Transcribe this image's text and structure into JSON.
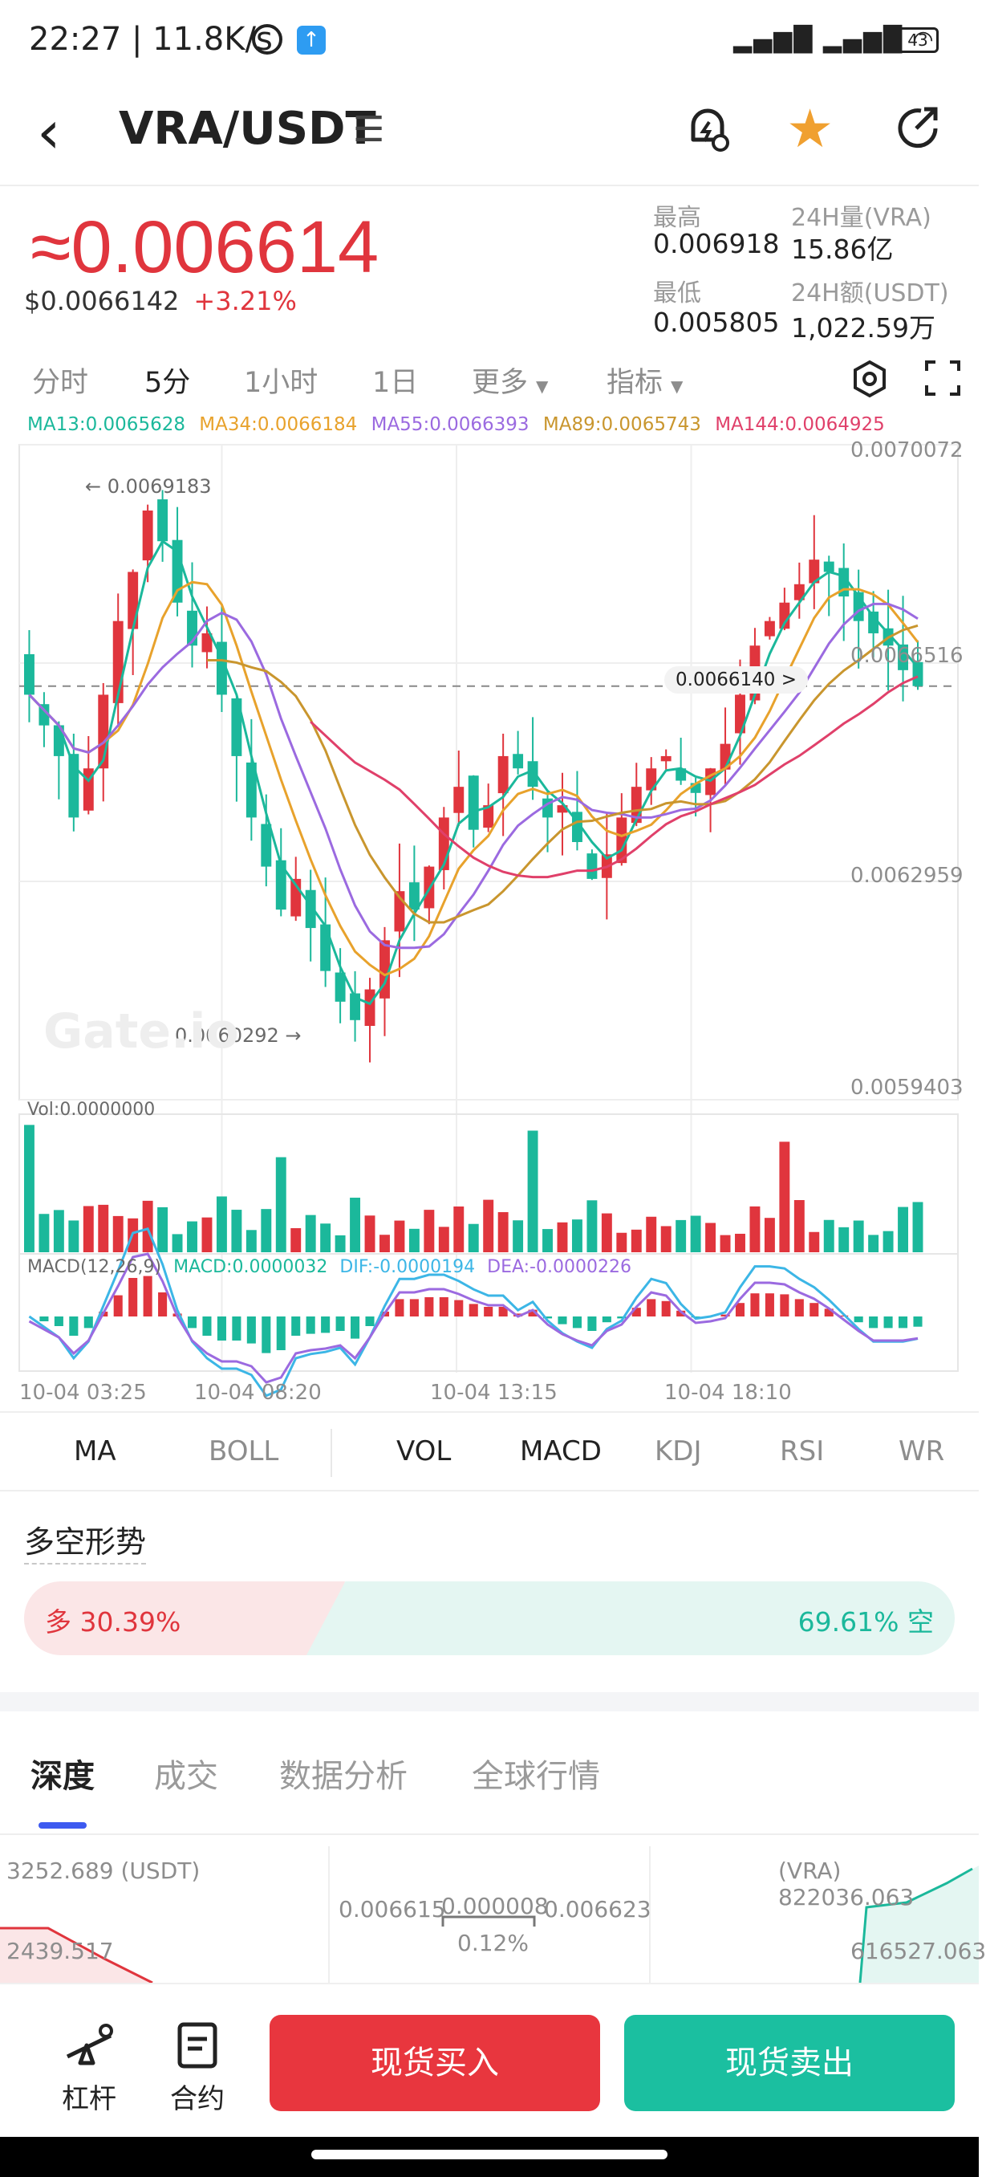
{
  "status_bar": {
    "time": "22:27 | 11.8K/s",
    "battery": "43"
  },
  "header": {
    "pair": "VRA/USDT",
    "favorited": true
  },
  "ticker": {
    "price": "≈0.006614",
    "usd_price": "$0.0066142",
    "change": "+3.21%",
    "high_label": "最高",
    "high_value": "0.006918",
    "vol_label": "24H量(VRA)",
    "vol_value": "15.86亿",
    "low_label": "最低",
    "low_value": "0.005805",
    "amount_label": "24H额(USDT)",
    "amount_value": "1,022.59万"
  },
  "periods": {
    "items": [
      "分时",
      "5分",
      "1小时",
      "1日",
      "更多",
      "指标"
    ],
    "active": "5分"
  },
  "ma_legend": [
    {
      "text": "MA13:0.0065628",
      "color": "#1bb89b"
    },
    {
      "text": "MA34:0.0066184",
      "color": "#e8a22c"
    },
    {
      "text": "MA55:0.0066393",
      "color": "#9b6ae0"
    },
    {
      "text": "MA89:0.0065743",
      "color": "#c9962e"
    },
    {
      "text": "MA144:0.0064925",
      "color": "#e0406a"
    }
  ],
  "chart": {
    "y_labels": [
      "0.0070072",
      "0.0066516",
      "0.0062959",
      "0.0059403"
    ],
    "high_marker": "← 0.0069183",
    "low_marker": "0.0060292 →",
    "current_price_tag": "0.0066140",
    "watermark": "Gate.io",
    "vol_legend": "Vol:0.0000000",
    "macd_legend": {
      "label": "MACD(12,26,9)",
      "macd": "MACD:0.0000032",
      "dif": "DIF:-0.0000194",
      "dea": "DEA:-0.0000226"
    },
    "x_labels": [
      "10-04 03:25",
      "10-04 08:20",
      "10-04 13:15",
      "10-04 18:10"
    ]
  },
  "chart_data": {
    "type": "candlestick",
    "ylim": [
      0.0059403,
      0.0070072
    ],
    "y_ticks": [
      0.0070072,
      0.0066516,
      0.0062959,
      0.0059403
    ],
    "x_ticks": [
      "10-04 03:25",
      "10-04 08:20",
      "10-04 13:15",
      "10-04 18:10"
    ],
    "close_series": [
      0.0066,
      0.00655,
      0.0065,
      0.0064,
      0.00648,
      0.0066,
      0.00672,
      0.0068,
      0.0069,
      0.00685,
      0.00675,
      0.00668,
      0.0067,
      0.0066,
      0.0065,
      0.0064,
      0.00632,
      0.00625,
      0.0063,
      0.00622,
      0.00615,
      0.0061,
      0.00607,
      0.00612,
      0.0062,
      0.00628,
      0.00625,
      0.00632,
      0.0064,
      0.00645,
      0.00638,
      0.00642,
      0.0065,
      0.00648,
      0.00645,
      0.0064,
      0.00642,
      0.00636,
      0.0063,
      0.00634,
      0.0064,
      0.00645,
      0.00648,
      0.0065,
      0.00646,
      0.00644,
      0.00648,
      0.00652,
      0.0066,
      0.00668,
      0.00672,
      0.00675,
      0.00678,
      0.00682,
      0.0068,
      0.00676,
      0.00672,
      0.0067,
      0.00668,
      0.00664,
      0.006614
    ],
    "high_marker_value": 0.0069183,
    "low_marker_value": 0.0060292,
    "current_price": 0.006614,
    "grid": true
  },
  "indicator_tabs": {
    "main": [
      "MA",
      "BOLL"
    ],
    "sub": [
      "VOL",
      "MACD",
      "KDJ",
      "RSI",
      "WR"
    ],
    "active_main": "MA",
    "active_sub": [
      "VOL",
      "MACD"
    ]
  },
  "sentiment": {
    "title": "多空形势",
    "long_text": "多 30.39%",
    "short_text": "69.61% 空",
    "long_pct": 30.39
  },
  "bottom_tabs": {
    "items": [
      "深度",
      "成交",
      "数据分析",
      "全球行情"
    ],
    "active": "深度"
  },
  "depth": {
    "left_total": "3252.689 (USDT)",
    "left_value": "2439.517",
    "bid": "0.006615",
    "spread": "0.000008",
    "ask": "0.006623",
    "spread_pct": "0.12%",
    "right_total": "(VRA) 822036.063",
    "right_value": "616527.063"
  },
  "footer": {
    "leverage_label": "杠杆",
    "contract_label": "合约",
    "buy_label": "现货买入",
    "sell_label": "现货卖出"
  },
  "colors": {
    "up": "#e0353d",
    "down": "#1bb89b",
    "accent": "#3d5af0"
  }
}
